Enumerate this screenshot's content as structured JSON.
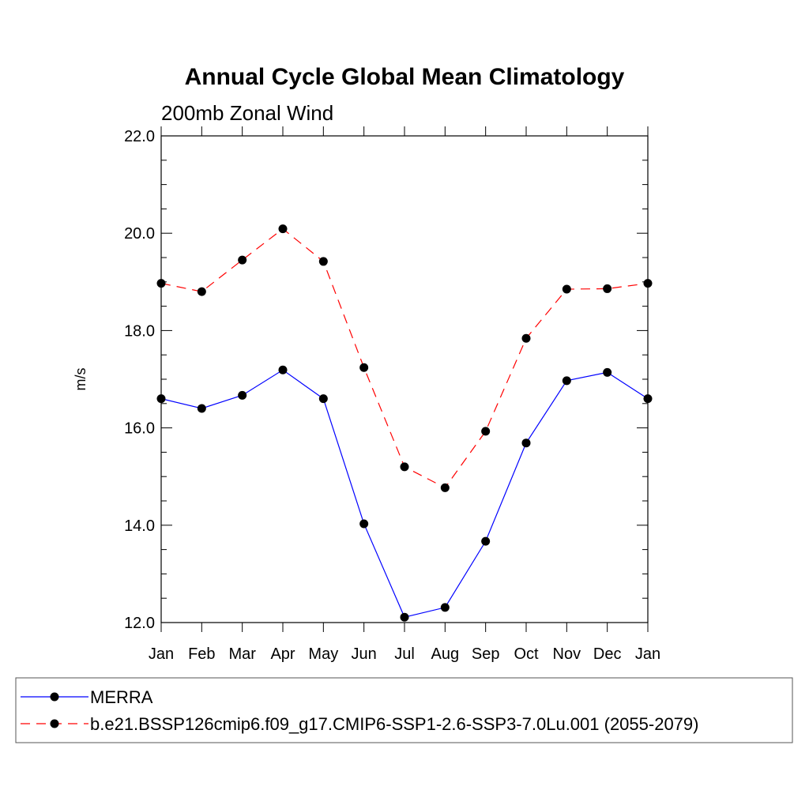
{
  "chart_data": {
    "type": "line",
    "title": "Annual Cycle Global Mean Climatology",
    "subtitle": "200mb Zonal Wind",
    "ylabel": "m/s",
    "xlabel": "",
    "categories": [
      "Jan",
      "Feb",
      "Mar",
      "Apr",
      "May",
      "Jun",
      "Jul",
      "Aug",
      "Sep",
      "Oct",
      "Nov",
      "Dec",
      "Jan"
    ],
    "ylim": [
      12.0,
      22.0
    ],
    "yticks": [
      "12.0",
      "14.0",
      "16.0",
      "18.0",
      "20.0",
      "22.0"
    ],
    "grid": false,
    "legend_position": "bottom",
    "series": [
      {
        "name": "MERRA",
        "color": "#0000ff",
        "dash": "solid",
        "values": [
          16.6,
          16.4,
          16.67,
          17.19,
          16.6,
          14.03,
          12.11,
          12.31,
          13.67,
          15.69,
          16.97,
          17.14,
          16.6
        ]
      },
      {
        "name": "b.e21.BSSP126cmip6.f09_g17.CMIP6-SSP1-2.6-SSP3-7.0Lu.001 (2055-2079)",
        "color": "#ff0000",
        "dash": "dashed",
        "values": [
          18.97,
          18.8,
          19.45,
          20.09,
          19.42,
          17.24,
          15.2,
          14.77,
          15.93,
          17.84,
          18.85,
          18.86,
          18.97
        ]
      }
    ]
  }
}
